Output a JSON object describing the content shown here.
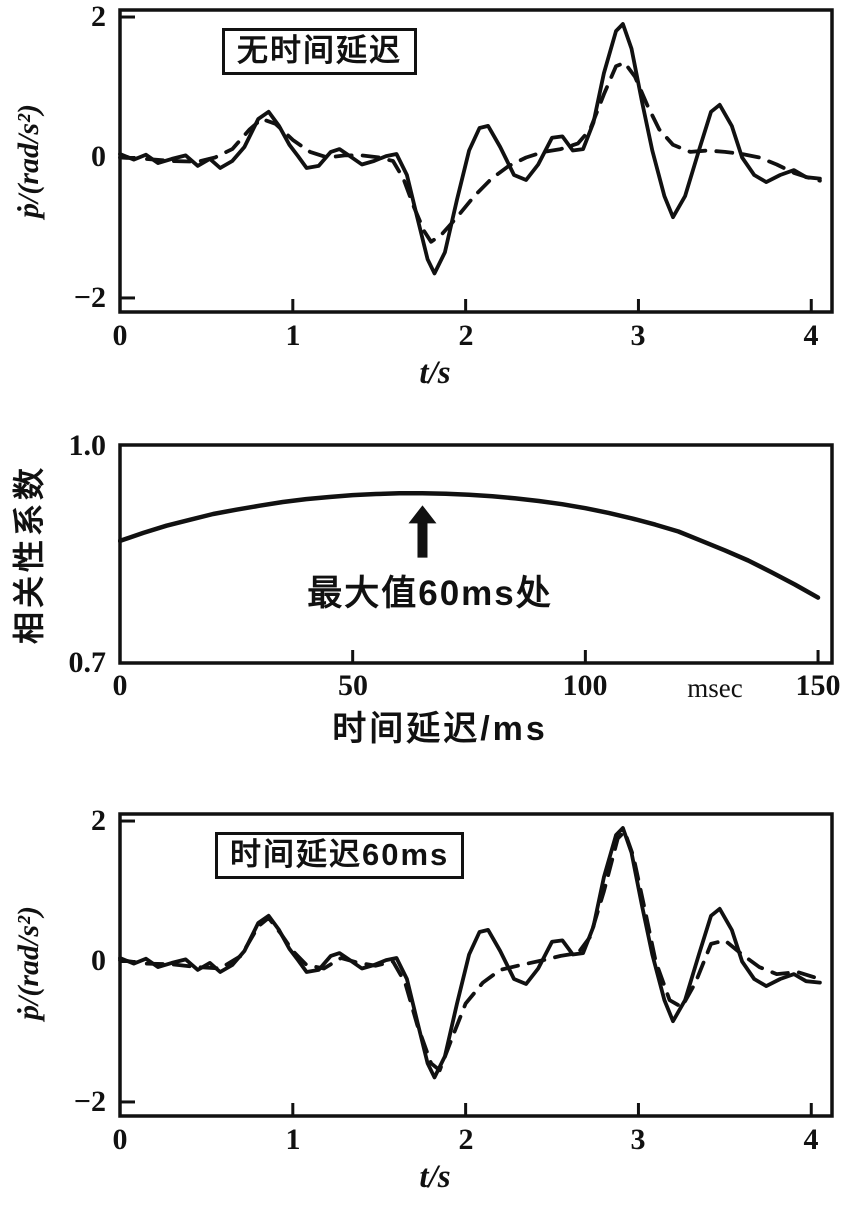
{
  "figure": {
    "background": "#ffffff",
    "ink_color": "#111111"
  },
  "chart_data": [
    {
      "name": "roll-acceleration-no-delay",
      "type": "line",
      "annotation_box": "无时间延迟",
      "xlabel": "t/s",
      "ylabel": "ṗ/(rad/s²)",
      "xlim": [
        0,
        4.12
      ],
      "ylim": [
        -2.2,
        2.1
      ],
      "xticks": [
        0,
        1,
        2,
        3,
        4
      ],
      "yticks": [
        2,
        0,
        -2
      ],
      "xtick_labels": [
        "0",
        "1",
        "2",
        "3",
        "4"
      ],
      "ytick_labels": [
        "2",
        "0",
        "−2"
      ],
      "grid": false,
      "legend": "none",
      "series": [
        {
          "name": "measured-solid",
          "style": "solid",
          "points": [
            [
              0.0,
              0.05
            ],
            [
              0.08,
              -0.03
            ],
            [
              0.15,
              0.04
            ],
            [
              0.22,
              -0.08
            ],
            [
              0.3,
              -0.02
            ],
            [
              0.38,
              0.03
            ],
            [
              0.45,
              -0.12
            ],
            [
              0.52,
              -0.02
            ],
            [
              0.58,
              -0.15
            ],
            [
              0.65,
              -0.05
            ],
            [
              0.72,
              0.15
            ],
            [
              0.8,
              0.55
            ],
            [
              0.86,
              0.65
            ],
            [
              0.92,
              0.45
            ],
            [
              0.98,
              0.18
            ],
            [
              1.03,
              0.02
            ],
            [
              1.08,
              -0.15
            ],
            [
              1.15,
              -0.12
            ],
            [
              1.22,
              0.08
            ],
            [
              1.27,
              0.12
            ],
            [
              1.33,
              0.02
            ],
            [
              1.4,
              -0.1
            ],
            [
              1.47,
              -0.05
            ],
            [
              1.54,
              0.02
            ],
            [
              1.6,
              0.05
            ],
            [
              1.66,
              -0.25
            ],
            [
              1.72,
              -0.85
            ],
            [
              1.78,
              -1.45
            ],
            [
              1.82,
              -1.65
            ],
            [
              1.88,
              -1.35
            ],
            [
              1.95,
              -0.6
            ],
            [
              2.02,
              0.1
            ],
            [
              2.08,
              0.42
            ],
            [
              2.13,
              0.45
            ],
            [
              2.2,
              0.15
            ],
            [
              2.28,
              -0.25
            ],
            [
              2.35,
              -0.32
            ],
            [
              2.42,
              -0.1
            ],
            [
              2.5,
              0.28
            ],
            [
              2.56,
              0.3
            ],
            [
              2.62,
              0.1
            ],
            [
              2.68,
              0.12
            ],
            [
              2.74,
              0.5
            ],
            [
              2.8,
              1.2
            ],
            [
              2.87,
              1.8
            ],
            [
              2.91,
              1.9
            ],
            [
              2.96,
              1.55
            ],
            [
              3.02,
              0.8
            ],
            [
              3.08,
              0.1
            ],
            [
              3.15,
              -0.55
            ],
            [
              3.2,
              -0.85
            ],
            [
              3.27,
              -0.55
            ],
            [
              3.35,
              0.1
            ],
            [
              3.42,
              0.65
            ],
            [
              3.47,
              0.75
            ],
            [
              3.54,
              0.45
            ],
            [
              3.6,
              0.0
            ],
            [
              3.67,
              -0.25
            ],
            [
              3.74,
              -0.35
            ],
            [
              3.82,
              -0.25
            ],
            [
              3.9,
              -0.18
            ],
            [
              3.97,
              -0.28
            ],
            [
              4.05,
              -0.3
            ]
          ]
        },
        {
          "name": "model-dashed",
          "style": "dashed",
          "points": [
            [
              0.0,
              0.0
            ],
            [
              0.15,
              -0.02
            ],
            [
              0.3,
              -0.05
            ],
            [
              0.45,
              -0.06
            ],
            [
              0.55,
              0.0
            ],
            [
              0.65,
              0.12
            ],
            [
              0.75,
              0.4
            ],
            [
              0.82,
              0.55
            ],
            [
              0.9,
              0.48
            ],
            [
              1.0,
              0.25
            ],
            [
              1.1,
              0.08
            ],
            [
              1.2,
              0.0
            ],
            [
              1.3,
              0.03
            ],
            [
              1.4,
              0.03
            ],
            [
              1.5,
              0.0
            ],
            [
              1.58,
              -0.05
            ],
            [
              1.64,
              -0.3
            ],
            [
              1.7,
              -0.7
            ],
            [
              1.76,
              -1.05
            ],
            [
              1.8,
              -1.2
            ],
            [
              1.86,
              -1.1
            ],
            [
              1.95,
              -0.85
            ],
            [
              2.05,
              -0.55
            ],
            [
              2.15,
              -0.3
            ],
            [
              2.25,
              -0.12
            ],
            [
              2.35,
              0.0
            ],
            [
              2.45,
              0.08
            ],
            [
              2.55,
              0.12
            ],
            [
              2.65,
              0.2
            ],
            [
              2.72,
              0.4
            ],
            [
              2.8,
              0.9
            ],
            [
              2.87,
              1.3
            ],
            [
              2.92,
              1.35
            ],
            [
              2.98,
              1.15
            ],
            [
              3.05,
              0.75
            ],
            [
              3.12,
              0.4
            ],
            [
              3.2,
              0.18
            ],
            [
              3.3,
              0.08
            ],
            [
              3.4,
              0.1
            ],
            [
              3.5,
              0.08
            ],
            [
              3.6,
              0.05
            ],
            [
              3.7,
              0.0
            ],
            [
              3.8,
              -0.1
            ],
            [
              3.9,
              -0.22
            ],
            [
              4.0,
              -0.3
            ],
            [
              4.05,
              -0.33
            ]
          ]
        }
      ]
    },
    {
      "name": "correlation-vs-time-delay",
      "type": "line",
      "xlabel": "时间延迟/ms",
      "ylabel": "相关性系数",
      "x_unit_text": "msec",
      "annotation": "最大值60ms处",
      "xlim": [
        0,
        153
      ],
      "ylim": [
        0.7,
        1.0
      ],
      "xticks": [
        0,
        50,
        100,
        150
      ],
      "yticks": [
        1.0,
        0.7
      ],
      "xtick_labels": [
        "0",
        "50",
        "100",
        "150"
      ],
      "ytick_labels": [
        "1.0",
        "0.7"
      ],
      "grid": false,
      "legend": "none",
      "arrow": {
        "x": 65,
        "y_tip": 0.917,
        "y_tail": 0.845
      },
      "series": [
        {
          "name": "correlation",
          "style": "solid",
          "points": [
            [
              0,
              0.868
            ],
            [
              5,
              0.879
            ],
            [
              10,
              0.889
            ],
            [
              15,
              0.897
            ],
            [
              20,
              0.905
            ],
            [
              25,
              0.911
            ],
            [
              30,
              0.9165
            ],
            [
              35,
              0.9215
            ],
            [
              40,
              0.9255
            ],
            [
              45,
              0.9285
            ],
            [
              50,
              0.931
            ],
            [
              55,
              0.9325
            ],
            [
              60,
              0.9335
            ],
            [
              65,
              0.9335
            ],
            [
              70,
              0.933
            ],
            [
              75,
              0.9315
            ],
            [
              80,
              0.9295
            ],
            [
              85,
              0.9265
            ],
            [
              90,
              0.923
            ],
            [
              95,
              0.9185
            ],
            [
              100,
              0.913
            ],
            [
              105,
              0.9065
            ],
            [
              110,
              0.899
            ],
            [
              115,
              0.8905
            ],
            [
              120,
              0.881
            ],
            [
              125,
              0.868
            ],
            [
              130,
              0.855
            ],
            [
              135,
              0.841
            ],
            [
              140,
              0.825
            ],
            [
              145,
              0.808
            ],
            [
              150,
              0.79
            ]
          ]
        }
      ]
    },
    {
      "name": "roll-acceleration-60ms-delay",
      "type": "line",
      "annotation_box": "时间延迟60ms",
      "xlabel": "t/s",
      "ylabel": "ṗ/(rad/s²)",
      "xlim": [
        0,
        4.12
      ],
      "ylim": [
        -2.2,
        2.1
      ],
      "xticks": [
        0,
        1,
        2,
        3,
        4
      ],
      "yticks": [
        2,
        0,
        -2
      ],
      "xtick_labels": [
        "0",
        "1",
        "2",
        "3",
        "4"
      ],
      "ytick_labels": [
        "2",
        "0",
        "−2"
      ],
      "grid": false,
      "legend": "none",
      "series": [
        {
          "name": "measured-solid",
          "style": "solid",
          "points": [
            [
              0.0,
              0.05
            ],
            [
              0.08,
              -0.03
            ],
            [
              0.15,
              0.04
            ],
            [
              0.22,
              -0.08
            ],
            [
              0.3,
              -0.02
            ],
            [
              0.38,
              0.03
            ],
            [
              0.45,
              -0.12
            ],
            [
              0.52,
              -0.02
            ],
            [
              0.58,
              -0.15
            ],
            [
              0.65,
              -0.05
            ],
            [
              0.72,
              0.15
            ],
            [
              0.8,
              0.55
            ],
            [
              0.86,
              0.65
            ],
            [
              0.92,
              0.45
            ],
            [
              0.98,
              0.18
            ],
            [
              1.03,
              0.02
            ],
            [
              1.08,
              -0.15
            ],
            [
              1.15,
              -0.12
            ],
            [
              1.22,
              0.08
            ],
            [
              1.27,
              0.12
            ],
            [
              1.33,
              0.02
            ],
            [
              1.4,
              -0.1
            ],
            [
              1.47,
              -0.05
            ],
            [
              1.54,
              0.02
            ],
            [
              1.6,
              0.05
            ],
            [
              1.66,
              -0.25
            ],
            [
              1.72,
              -0.85
            ],
            [
              1.78,
              -1.45
            ],
            [
              1.82,
              -1.65
            ],
            [
              1.88,
              -1.35
            ],
            [
              1.95,
              -0.6
            ],
            [
              2.02,
              0.1
            ],
            [
              2.08,
              0.42
            ],
            [
              2.13,
              0.45
            ],
            [
              2.2,
              0.15
            ],
            [
              2.28,
              -0.25
            ],
            [
              2.35,
              -0.32
            ],
            [
              2.42,
              -0.1
            ],
            [
              2.5,
              0.28
            ],
            [
              2.56,
              0.3
            ],
            [
              2.62,
              0.1
            ],
            [
              2.68,
              0.12
            ],
            [
              2.74,
              0.5
            ],
            [
              2.8,
              1.2
            ],
            [
              2.87,
              1.8
            ],
            [
              2.91,
              1.9
            ],
            [
              2.96,
              1.55
            ],
            [
              3.02,
              0.8
            ],
            [
              3.08,
              0.1
            ],
            [
              3.15,
              -0.55
            ],
            [
              3.2,
              -0.85
            ],
            [
              3.27,
              -0.55
            ],
            [
              3.35,
              0.1
            ],
            [
              3.42,
              0.65
            ],
            [
              3.47,
              0.75
            ],
            [
              3.54,
              0.45
            ],
            [
              3.6,
              0.0
            ],
            [
              3.67,
              -0.25
            ],
            [
              3.74,
              -0.35
            ],
            [
              3.82,
              -0.25
            ],
            [
              3.9,
              -0.18
            ],
            [
              3.97,
              -0.28
            ],
            [
              4.05,
              -0.3
            ]
          ]
        },
        {
          "name": "model-delayed-dashed",
          "style": "dashed",
          "points": [
            [
              0.0,
              0.02
            ],
            [
              0.15,
              -0.03
            ],
            [
              0.3,
              -0.04
            ],
            [
              0.45,
              -0.08
            ],
            [
              0.58,
              -0.1
            ],
            [
              0.7,
              0.08
            ],
            [
              0.8,
              0.5
            ],
            [
              0.86,
              0.62
            ],
            [
              0.93,
              0.4
            ],
            [
              1.0,
              0.15
            ],
            [
              1.08,
              -0.05
            ],
            [
              1.18,
              -0.1
            ],
            [
              1.28,
              0.05
            ],
            [
              1.38,
              -0.02
            ],
            [
              1.48,
              -0.06
            ],
            [
              1.58,
              0.0
            ],
            [
              1.65,
              -0.3
            ],
            [
              1.72,
              -0.9
            ],
            [
              1.8,
              -1.45
            ],
            [
              1.85,
              -1.55
            ],
            [
              1.92,
              -1.1
            ],
            [
              2.0,
              -0.6
            ],
            [
              2.1,
              -0.3
            ],
            [
              2.2,
              -0.12
            ],
            [
              2.32,
              -0.05
            ],
            [
              2.45,
              0.02
            ],
            [
              2.55,
              0.08
            ],
            [
              2.65,
              0.12
            ],
            [
              2.72,
              0.35
            ],
            [
              2.8,
              1.0
            ],
            [
              2.88,
              1.75
            ],
            [
              2.92,
              1.85
            ],
            [
              2.97,
              1.5
            ],
            [
              3.04,
              0.7
            ],
            [
              3.1,
              0.0
            ],
            [
              3.18,
              -0.55
            ],
            [
              3.25,
              -0.65
            ],
            [
              3.33,
              -0.3
            ],
            [
              3.42,
              0.25
            ],
            [
              3.5,
              0.3
            ],
            [
              3.6,
              0.1
            ],
            [
              3.7,
              -0.08
            ],
            [
              3.8,
              -0.18
            ],
            [
              3.92,
              -0.15
            ],
            [
              4.05,
              -0.25
            ]
          ]
        }
      ]
    }
  ]
}
